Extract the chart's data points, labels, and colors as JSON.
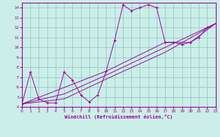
{
  "xlabel": "Windchill (Refroidissement éolien,°C)",
  "bg_color": "#cceee8",
  "line_color": "#990099",
  "grid_color": "#99cccc",
  "x_min": 0,
  "x_max": 23,
  "y_min": 4,
  "y_max": 14.5,
  "yticks": [
    4,
    5,
    6,
    7,
    8,
    9,
    10,
    11,
    12,
    13,
    14
  ],
  "xticks": [
    0,
    1,
    2,
    3,
    4,
    5,
    6,
    7,
    8,
    9,
    10,
    11,
    12,
    13,
    14,
    15,
    16,
    17,
    18,
    19,
    20,
    21,
    22,
    23
  ],
  "main_series": [
    [
      0,
      4.3
    ],
    [
      1,
      7.5
    ],
    [
      2,
      4.8
    ],
    [
      3,
      4.4
    ],
    [
      4,
      4.4
    ],
    [
      5,
      7.5
    ],
    [
      6,
      6.7
    ],
    [
      7,
      5.2
    ],
    [
      8,
      4.5
    ],
    [
      9,
      5.2
    ],
    [
      10,
      7.6
    ],
    [
      11,
      10.7
    ],
    [
      12,
      14.3
    ],
    [
      13,
      13.7
    ],
    [
      14,
      14.0
    ],
    [
      15,
      14.3
    ],
    [
      16,
      14.0
    ],
    [
      17,
      10.5
    ],
    [
      18,
      10.5
    ],
    [
      19,
      10.3
    ],
    [
      20,
      10.5
    ],
    [
      21,
      11.0
    ],
    [
      22,
      12.0
    ],
    [
      23,
      12.4
    ]
  ],
  "line2": [
    [
      0,
      4.3
    ],
    [
      10,
      7.6
    ],
    [
      17,
      10.5
    ],
    [
      20,
      10.5
    ],
    [
      23,
      12.4
    ]
  ],
  "line3": [
    [
      0,
      4.3
    ],
    [
      5,
      5.3
    ],
    [
      10,
      7.2
    ],
    [
      17,
      10.0
    ],
    [
      23,
      12.4
    ]
  ],
  "line4": [
    [
      0,
      4.3
    ],
    [
      5,
      4.8
    ],
    [
      10,
      6.8
    ],
    [
      17,
      9.5
    ],
    [
      23,
      12.4
    ]
  ]
}
